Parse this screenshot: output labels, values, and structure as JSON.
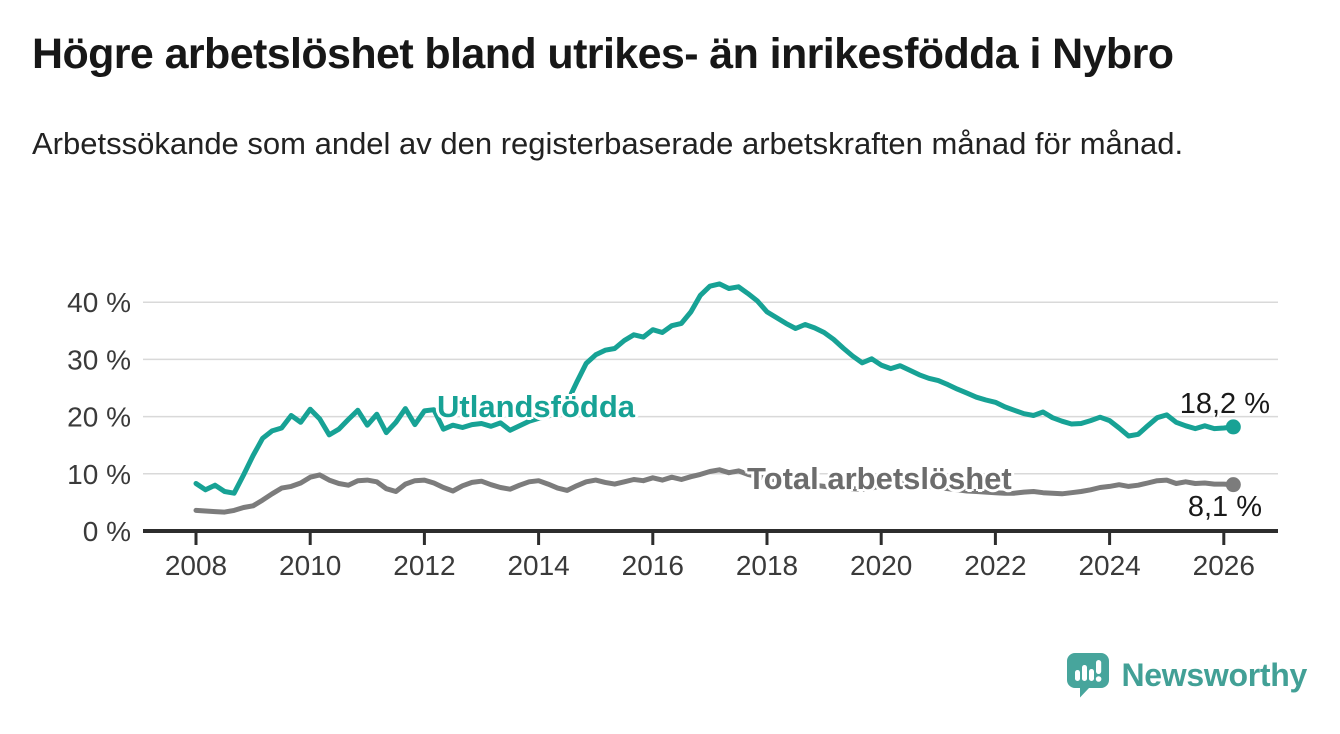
{
  "header": {
    "title": "Högre arbetslöshet bland utrikes- än inrikesfödda i Nybro",
    "subtitle": "Arbetssökande som andel av den registerbaserade arbetskraften månad för månad."
  },
  "chart_data": {
    "type": "line",
    "title": "Högre arbetslöshet bland utrikes- än inrikesfödda i Nybro",
    "subtitle": "Arbetssökande som andel av den registerbaserade arbetskraften månad för månad.",
    "xlabel": "",
    "ylabel": "",
    "x_unit": "year (monthly series, sampled every 2 months)",
    "x_start": 2008,
    "points_per_year": 6,
    "x_ticks": [
      2008,
      2010,
      2012,
      2014,
      2016,
      2018,
      2020,
      2022,
      2024,
      2026
    ],
    "y_ticks": [
      0,
      10,
      20,
      30,
      40
    ],
    "y_tick_labels": [
      "0 %",
      "10 %",
      "20 %",
      "30 %",
      "40 %"
    ],
    "ylim": [
      0,
      45
    ],
    "xlim": [
      2007.1,
      2027.0
    ],
    "grid": "horizontal",
    "legend_position": "inline-labels",
    "axis_color": "#2d2d2d",
    "grid_color": "#d9d9d9",
    "tick_label_color": "#3a3a3a",
    "series": [
      {
        "name": "Utlandsfödda",
        "color": "#17a295",
        "end_label": "18,2 %",
        "end_value": 18.2,
        "values": [
          8.3,
          7.2,
          8.0,
          6.9,
          6.6,
          9.8,
          13.2,
          16.2,
          17.5,
          18.0,
          20.2,
          19.0,
          21.3,
          19.6,
          16.8,
          17.8,
          19.5,
          21.1,
          18.5,
          20.4,
          17.2,
          19.0,
          21.4,
          18.6,
          21.0,
          21.2,
          17.8,
          18.5,
          18.1,
          18.6,
          18.8,
          18.3,
          18.9,
          17.6,
          18.4,
          19.2,
          19.7,
          20.1,
          21.0,
          22.5,
          26.0,
          29.3,
          30.8,
          31.6,
          31.9,
          33.3,
          34.3,
          33.9,
          35.2,
          34.7,
          35.9,
          36.3,
          38.3,
          41.2,
          42.8,
          43.2,
          42.4,
          42.7,
          41.5,
          40.2,
          38.3,
          37.3,
          36.3,
          35.4,
          36.1,
          35.5,
          34.7,
          33.5,
          32.0,
          30.6,
          29.4,
          30.1,
          29.0,
          28.4,
          28.9,
          28.1,
          27.3,
          26.7,
          26.3,
          25.6,
          24.8,
          24.1,
          23.4,
          22.9,
          22.5,
          21.7,
          21.1,
          20.5,
          20.2,
          20.8,
          19.8,
          19.2,
          18.7,
          18.8,
          19.3,
          19.9,
          19.3,
          18.0,
          16.6,
          16.9,
          18.4,
          19.8,
          20.3,
          19.0,
          18.4,
          17.9,
          18.4,
          17.9,
          18.0,
          18.2
        ]
      },
      {
        "name": "Total arbetslöshet",
        "color": "#7c7c7c",
        "end_label": "8,1 %",
        "end_value": 8.1,
        "values": [
          3.6,
          3.5,
          3.4,
          3.3,
          3.6,
          4.1,
          4.4,
          5.4,
          6.5,
          7.5,
          7.8,
          8.4,
          9.4,
          9.8,
          8.9,
          8.3,
          8.0,
          8.8,
          8.9,
          8.6,
          7.4,
          6.9,
          8.2,
          8.8,
          8.9,
          8.4,
          7.6,
          7.0,
          7.9,
          8.5,
          8.7,
          8.1,
          7.6,
          7.3,
          8.0,
          8.6,
          8.8,
          8.2,
          7.5,
          7.1,
          7.9,
          8.6,
          8.9,
          8.5,
          8.2,
          8.6,
          9.0,
          8.8,
          9.3,
          8.9,
          9.4,
          9.0,
          9.5,
          9.9,
          10.4,
          10.7,
          10.2,
          10.5,
          9.9,
          9.5,
          9.2,
          8.9,
          8.7,
          8.4,
          8.2,
          8.0,
          7.8,
          7.6,
          7.5,
          7.4,
          7.3,
          7.5,
          7.9,
          8.2,
          8.4,
          8.2,
          8.0,
          7.8,
          7.6,
          7.4,
          7.2,
          7.0,
          6.9,
          6.8,
          6.7,
          6.6,
          6.6,
          6.8,
          6.9,
          6.7,
          6.6,
          6.5,
          6.7,
          6.9,
          7.2,
          7.6,
          7.8,
          8.1,
          7.8,
          8.0,
          8.4,
          8.8,
          8.9,
          8.3,
          8.6,
          8.3,
          8.4,
          8.2,
          8.2,
          8.1
        ]
      }
    ]
  },
  "footer": {
    "brand": "Newsworthy",
    "brand_color": "#42a096",
    "icon_color": "#47a59c"
  }
}
